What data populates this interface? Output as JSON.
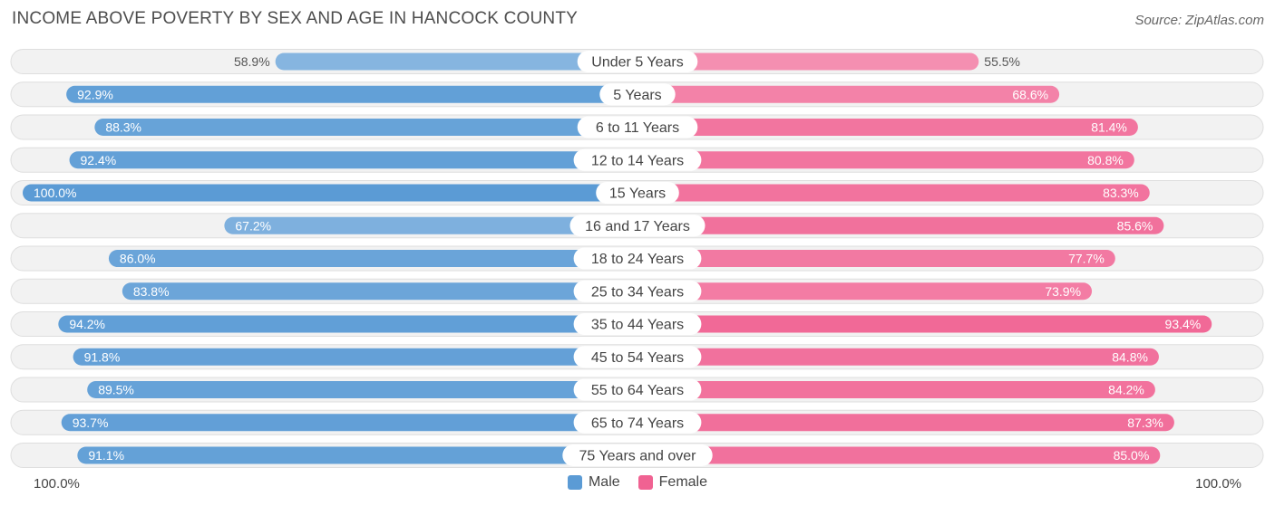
{
  "title": "INCOME ABOVE POVERTY BY SEX AND AGE IN HANCOCK COUNTY",
  "source": "Source: ZipAtlas.com",
  "axis_left_label": "100.0%",
  "axis_right_label": "100.0%",
  "legend": {
    "male_label": "Male",
    "female_label": "Female",
    "male_color": "#5b9bd5",
    "female_color": "#f06292"
  },
  "chart_data": {
    "type": "bar",
    "orientation": "diverging-horizontal",
    "title": "INCOME ABOVE POVERTY BY SEX AND AGE IN HANCOCK COUNTY",
    "xlim": [
      0,
      100
    ],
    "categories": [
      "Under 5 Years",
      "5 Years",
      "6 to 11 Years",
      "12 to 14 Years",
      "15 Years",
      "16 and 17 Years",
      "18 to 24 Years",
      "25 to 34 Years",
      "35 to 44 Years",
      "45 to 54 Years",
      "55 to 64 Years",
      "65 to 74 Years",
      "75 Years and over"
    ],
    "series": [
      {
        "name": "Male",
        "color": "#5b9bd5",
        "side": "left",
        "values": [
          58.9,
          92.9,
          88.3,
          92.4,
          100.0,
          67.2,
          86.0,
          83.8,
          94.2,
          91.8,
          89.5,
          93.7,
          91.1
        ],
        "labels": [
          "58.9%",
          "92.9%",
          "88.3%",
          "92.4%",
          "100.0%",
          "67.2%",
          "86.0%",
          "83.8%",
          "94.2%",
          "91.8%",
          "89.5%",
          "93.7%",
          "91.1%"
        ]
      },
      {
        "name": "Female",
        "color": "#f06292",
        "side": "right",
        "values": [
          55.5,
          68.6,
          81.4,
          80.8,
          83.3,
          85.6,
          77.7,
          73.9,
          93.4,
          84.8,
          84.2,
          87.3,
          85.0
        ],
        "labels": [
          "55.5%",
          "68.6%",
          "81.4%",
          "80.8%",
          "83.3%",
          "85.6%",
          "77.7%",
          "73.9%",
          "93.4%",
          "84.8%",
          "84.2%",
          "87.3%",
          "85.0%"
        ]
      }
    ]
  }
}
